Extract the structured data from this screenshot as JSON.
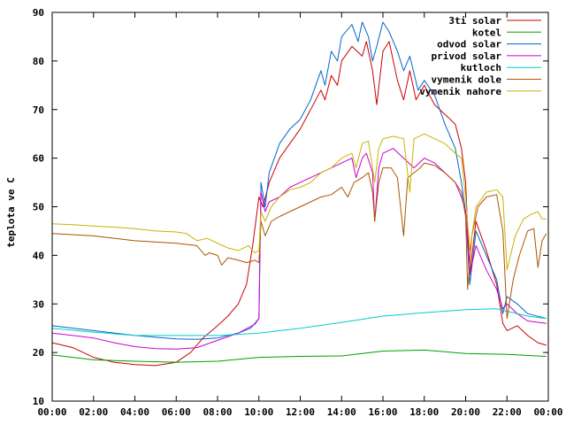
{
  "chart_data": {
    "type": "line",
    "title": "",
    "xlabel": "",
    "ylabel": "teplota ve C",
    "ylim": [
      10,
      90
    ],
    "yticks": [
      10,
      20,
      30,
      40,
      50,
      60,
      70,
      80,
      90
    ],
    "xlim": [
      "00:00",
      "24:00"
    ],
    "xtick_labels": [
      "00:00",
      "02:00",
      "04:00",
      "06:00",
      "08:00",
      "10:00",
      "12:00",
      "14:00",
      "16:00",
      "18:00",
      "20:00",
      "22:00",
      "00:00"
    ],
    "xtick_hours": [
      0,
      2,
      4,
      6,
      8,
      10,
      12,
      14,
      16,
      18,
      20,
      22,
      24
    ],
    "grid": false,
    "legend_position": "top-right",
    "series": [
      {
        "name": "3ti solar",
        "color": "#cc0000",
        "points": [
          [
            0,
            22
          ],
          [
            1,
            21
          ],
          [
            2,
            19
          ],
          [
            3,
            18
          ],
          [
            4,
            17.5
          ],
          [
            5,
            17.3
          ],
          [
            6,
            18
          ],
          [
            6.7,
            20
          ],
          [
            7.3,
            23
          ],
          [
            8,
            25.5
          ],
          [
            8.5,
            27.5
          ],
          [
            9,
            30
          ],
          [
            9.4,
            34
          ],
          [
            9.7,
            42
          ],
          [
            10,
            52
          ],
          [
            10.2,
            50
          ],
          [
            10.5,
            55
          ],
          [
            11,
            60
          ],
          [
            11.5,
            63
          ],
          [
            12,
            66
          ],
          [
            12.5,
            70
          ],
          [
            13,
            74
          ],
          [
            13.2,
            72
          ],
          [
            13.5,
            77
          ],
          [
            13.8,
            75
          ],
          [
            14,
            80
          ],
          [
            14.5,
            83
          ],
          [
            15,
            81
          ],
          [
            15.2,
            84
          ],
          [
            15.5,
            78
          ],
          [
            15.7,
            71
          ],
          [
            16,
            82
          ],
          [
            16.3,
            84
          ],
          [
            16.7,
            76
          ],
          [
            17,
            72
          ],
          [
            17.3,
            78
          ],
          [
            17.6,
            72
          ],
          [
            18,
            75
          ],
          [
            18.5,
            71
          ],
          [
            19,
            69
          ],
          [
            19.5,
            67
          ],
          [
            19.8,
            62
          ],
          [
            20,
            55
          ],
          [
            20.2,
            36
          ],
          [
            20.5,
            47
          ],
          [
            21,
            41
          ],
          [
            21.5,
            34
          ],
          [
            21.8,
            26
          ],
          [
            22,
            24.5
          ],
          [
            22.5,
            25.5
          ],
          [
            23,
            23.5
          ],
          [
            23.5,
            22
          ],
          [
            23.9,
            21.5
          ]
        ]
      },
      {
        "name": "kotel",
        "color": "#00a000",
        "points": [
          [
            0,
            19.5
          ],
          [
            2,
            18.5
          ],
          [
            4,
            18.2
          ],
          [
            6,
            18
          ],
          [
            8,
            18.2
          ],
          [
            10,
            19
          ],
          [
            12,
            19.2
          ],
          [
            14,
            19.3
          ],
          [
            16,
            20.3
          ],
          [
            18,
            20.5
          ],
          [
            20,
            19.8
          ],
          [
            22,
            19.6
          ],
          [
            23.9,
            19.2
          ]
        ]
      },
      {
        "name": "odvod solar",
        "color": "#0066cc",
        "points": [
          [
            0,
            25.5
          ],
          [
            2,
            24.5
          ],
          [
            4,
            23.5
          ],
          [
            6,
            22.8
          ],
          [
            7,
            22.7
          ],
          [
            8,
            23
          ],
          [
            9,
            24
          ],
          [
            9.6,
            25
          ],
          [
            10,
            27
          ],
          [
            10.1,
            55
          ],
          [
            10.3,
            50
          ],
          [
            10.5,
            57
          ],
          [
            11,
            63
          ],
          [
            11.5,
            66
          ],
          [
            12,
            68
          ],
          [
            12.5,
            72
          ],
          [
            13,
            78
          ],
          [
            13.2,
            75
          ],
          [
            13.5,
            82
          ],
          [
            13.8,
            80
          ],
          [
            14,
            85
          ],
          [
            14.5,
            87.5
          ],
          [
            14.8,
            84
          ],
          [
            15,
            88
          ],
          [
            15.3,
            85
          ],
          [
            15.5,
            80
          ],
          [
            15.7,
            83
          ],
          [
            16,
            88
          ],
          [
            16.3,
            86
          ],
          [
            16.7,
            82
          ],
          [
            17,
            78
          ],
          [
            17.3,
            81
          ],
          [
            17.7,
            74
          ],
          [
            18,
            76
          ],
          [
            18.5,
            73
          ],
          [
            19,
            67
          ],
          [
            19.5,
            62
          ],
          [
            19.8,
            55
          ],
          [
            20,
            49
          ],
          [
            20.2,
            34
          ],
          [
            20.5,
            45
          ],
          [
            21,
            40
          ],
          [
            21.5,
            35
          ],
          [
            21.8,
            28
          ],
          [
            22,
            31.5
          ],
          [
            22.5,
            30
          ],
          [
            23,
            28
          ],
          [
            23.9,
            27
          ]
        ]
      },
      {
        "name": "privod solar",
        "color": "#cc00cc",
        "points": [
          [
            0,
            24
          ],
          [
            1,
            23.5
          ],
          [
            2,
            23
          ],
          [
            3,
            22
          ],
          [
            4,
            21.2
          ],
          [
            5,
            20.8
          ],
          [
            6,
            20.7
          ],
          [
            7,
            21
          ],
          [
            8,
            22.5
          ],
          [
            9,
            24
          ],
          [
            9.8,
            25.8
          ],
          [
            10,
            27
          ],
          [
            10.1,
            53
          ],
          [
            10.3,
            49
          ],
          [
            10.5,
            51
          ],
          [
            11,
            52
          ],
          [
            11.5,
            54
          ],
          [
            12,
            55
          ],
          [
            12.5,
            56
          ],
          [
            13,
            57
          ],
          [
            13.5,
            58
          ],
          [
            14,
            59
          ],
          [
            14.5,
            60
          ],
          [
            14.7,
            56
          ],
          [
            15,
            60
          ],
          [
            15.2,
            61
          ],
          [
            15.5,
            57
          ],
          [
            15.6,
            47
          ],
          [
            15.8,
            58
          ],
          [
            16,
            61
          ],
          [
            16.5,
            62
          ],
          [
            17,
            60
          ],
          [
            17.5,
            58
          ],
          [
            18,
            60
          ],
          [
            18.5,
            59
          ],
          [
            19,
            57
          ],
          [
            19.5,
            55
          ],
          [
            19.8,
            52
          ],
          [
            20,
            49
          ],
          [
            20.2,
            36
          ],
          [
            20.5,
            42
          ],
          [
            21,
            37
          ],
          [
            21.5,
            33
          ],
          [
            21.8,
            29
          ],
          [
            22,
            30
          ],
          [
            22.5,
            28
          ],
          [
            23,
            26.5
          ],
          [
            23.9,
            26
          ]
        ]
      },
      {
        "name": "kutloch",
        "color": "#00cccc",
        "points": [
          [
            0,
            25
          ],
          [
            2,
            24.2
          ],
          [
            4,
            23.5
          ],
          [
            6,
            23.5
          ],
          [
            8,
            23.5
          ],
          [
            10,
            24
          ],
          [
            12,
            25
          ],
          [
            14,
            26.2
          ],
          [
            16,
            27.5
          ],
          [
            18,
            28.2
          ],
          [
            20,
            28.8
          ],
          [
            21.5,
            29
          ],
          [
            22,
            28.5
          ],
          [
            23,
            27.5
          ],
          [
            23.9,
            27
          ]
        ]
      },
      {
        "name": "vymenik dole",
        "color": "#aa5500",
        "points": [
          [
            0,
            44.5
          ],
          [
            2,
            44
          ],
          [
            4,
            43
          ],
          [
            6,
            42.5
          ],
          [
            7,
            42
          ],
          [
            7.4,
            40
          ],
          [
            7.6,
            40.5
          ],
          [
            8,
            40
          ],
          [
            8.2,
            38
          ],
          [
            8.5,
            39.5
          ],
          [
            9,
            39
          ],
          [
            9.4,
            38.5
          ],
          [
            9.8,
            39
          ],
          [
            10,
            38.5
          ],
          [
            10.1,
            47
          ],
          [
            10.3,
            44
          ],
          [
            10.6,
            47
          ],
          [
            11,
            48
          ],
          [
            11.5,
            49
          ],
          [
            12,
            50
          ],
          [
            12.5,
            51
          ],
          [
            13,
            52
          ],
          [
            13.5,
            52.5
          ],
          [
            14,
            54
          ],
          [
            14.3,
            52
          ],
          [
            14.6,
            55
          ],
          [
            15,
            56
          ],
          [
            15.3,
            57
          ],
          [
            15.5,
            53
          ],
          [
            15.6,
            47
          ],
          [
            15.8,
            55
          ],
          [
            16,
            58
          ],
          [
            16.4,
            58
          ],
          [
            16.7,
            56
          ],
          [
            17,
            44
          ],
          [
            17.2,
            56
          ],
          [
            17.5,
            57
          ],
          [
            17.8,
            58
          ],
          [
            18,
            59
          ],
          [
            18.5,
            58.5
          ],
          [
            19,
            57
          ],
          [
            19.5,
            55
          ],
          [
            19.8,
            53
          ],
          [
            20,
            48
          ],
          [
            20.1,
            33
          ],
          [
            20.3,
            44
          ],
          [
            20.6,
            50
          ],
          [
            21,
            52
          ],
          [
            21.5,
            52.5
          ],
          [
            21.8,
            45
          ],
          [
            22,
            27
          ],
          [
            22.3,
            35
          ],
          [
            22.6,
            40
          ],
          [
            23,
            45
          ],
          [
            23.3,
            45.5
          ],
          [
            23.5,
            37.5
          ],
          [
            23.7,
            43
          ],
          [
            23.9,
            44.5
          ]
        ]
      },
      {
        "name": "vymenik nahore",
        "color": "#c8b400",
        "points": [
          [
            0,
            46.5
          ],
          [
            1,
            46.3
          ],
          [
            2,
            46
          ],
          [
            3,
            45.8
          ],
          [
            4,
            45.5
          ],
          [
            5,
            45
          ],
          [
            6,
            44.8
          ],
          [
            6.5,
            44.5
          ],
          [
            7,
            43
          ],
          [
            7.5,
            43.5
          ],
          [
            8,
            42.5
          ],
          [
            8.5,
            41.5
          ],
          [
            9,
            41
          ],
          [
            9.5,
            42
          ],
          [
            9.8,
            40.5
          ],
          [
            10,
            41
          ],
          [
            10.1,
            49
          ],
          [
            10.3,
            47
          ],
          [
            10.6,
            50
          ],
          [
            11,
            52
          ],
          [
            11.5,
            53.5
          ],
          [
            12,
            54
          ],
          [
            12.5,
            55
          ],
          [
            13,
            57
          ],
          [
            13.5,
            58
          ],
          [
            14,
            60
          ],
          [
            14.5,
            61
          ],
          [
            14.7,
            58
          ],
          [
            15,
            63
          ],
          [
            15.3,
            63.5
          ],
          [
            15.6,
            55
          ],
          [
            15.8,
            62
          ],
          [
            16,
            64
          ],
          [
            16.5,
            64.5
          ],
          [
            17,
            64
          ],
          [
            17.3,
            53
          ],
          [
            17.5,
            64
          ],
          [
            18,
            65
          ],
          [
            18.5,
            64
          ],
          [
            19,
            63
          ],
          [
            19.5,
            61
          ],
          [
            19.8,
            60
          ],
          [
            20,
            52
          ],
          [
            20.2,
            41
          ],
          [
            20.5,
            50
          ],
          [
            21,
            53
          ],
          [
            21.5,
            53.5
          ],
          [
            21.8,
            52
          ],
          [
            22,
            37
          ],
          [
            22.4,
            44
          ],
          [
            22.8,
            47.5
          ],
          [
            23.2,
            48.5
          ],
          [
            23.5,
            49
          ],
          [
            23.7,
            47.5
          ],
          [
            23.9,
            47.5
          ]
        ]
      }
    ]
  }
}
